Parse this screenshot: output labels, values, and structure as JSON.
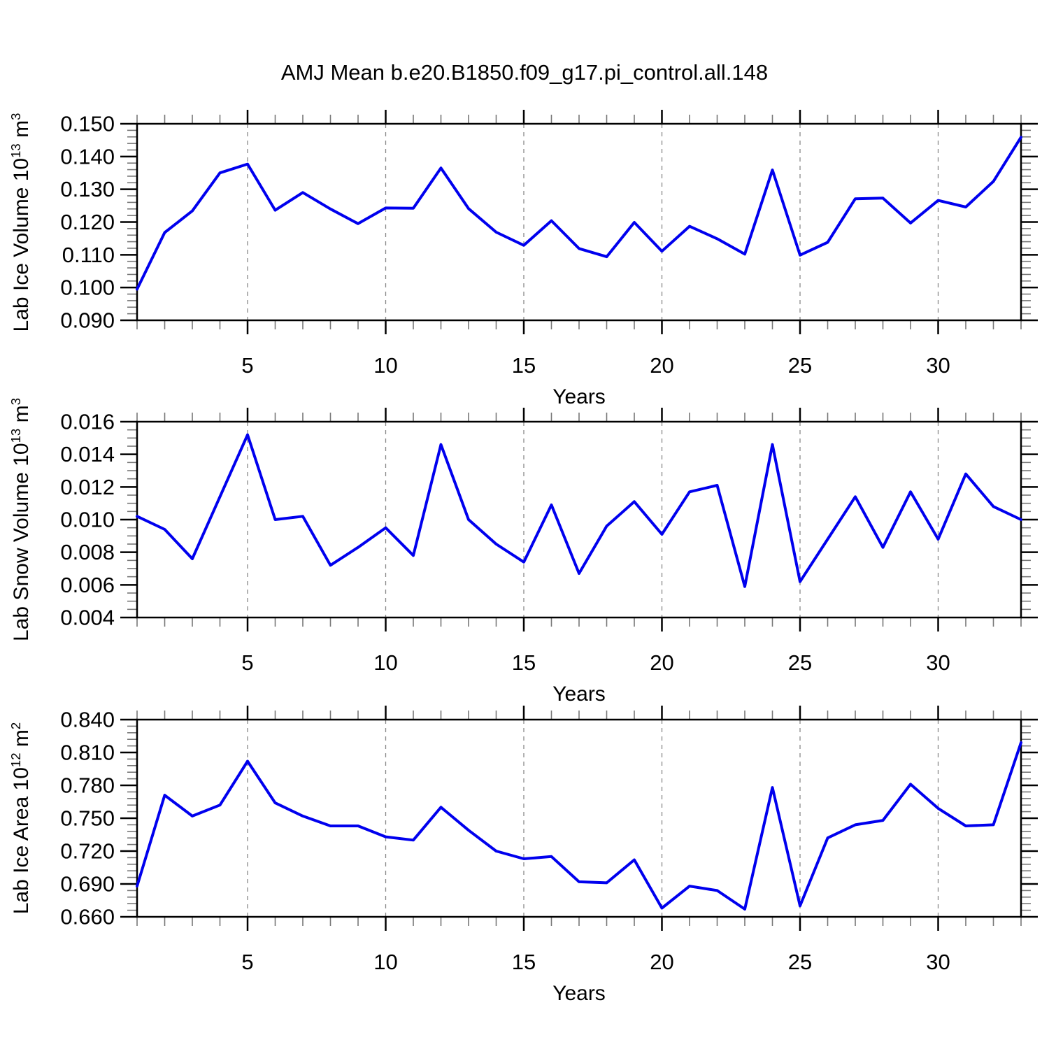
{
  "title": "AMJ Mean b.e20.B1850.f09_g17.pi_control.all.148",
  "colors": {
    "line": "#0000ee",
    "frame": "#000000",
    "grid": "#888888",
    "minor_tick": "#777777",
    "background": "#ffffff"
  },
  "x_axis": {
    "label": "Years",
    "min": 1,
    "max": 33,
    "minor_step": 1,
    "major_ticks": [
      5,
      10,
      15,
      20,
      25,
      30
    ],
    "tick_labels": [
      "5",
      "10",
      "15",
      "20",
      "25",
      "30"
    ]
  },
  "chart_data": [
    {
      "type": "line",
      "ylabel_text": "Lab Ice Volume 10^13 m^3",
      "ylabel_segments": [
        {
          "t": "Lab Ice Volume 10"
        },
        {
          "t": "13",
          "sup": true
        },
        {
          "t": " m"
        },
        {
          "t": "3",
          "sup": true
        }
      ],
      "ylim": [
        0.09,
        0.15
      ],
      "ytick_step": 0.01,
      "yminor_step": 0.002,
      "ytick_labels": [
        "0.090",
        "0.100",
        "0.110",
        "0.120",
        "0.130",
        "0.140",
        "0.150"
      ],
      "x": [
        1,
        2,
        3,
        4,
        5,
        6,
        7,
        8,
        9,
        10,
        11,
        12,
        13,
        14,
        15,
        16,
        17,
        18,
        19,
        20,
        21,
        22,
        23,
        24,
        25,
        26,
        27,
        28,
        29,
        30,
        31,
        32,
        33
      ],
      "values": [
        0.0995,
        0.1168,
        0.1234,
        0.135,
        0.1377,
        0.1236,
        0.129,
        0.124,
        0.1195,
        0.1243,
        0.1242,
        0.1365,
        0.1241,
        0.1169,
        0.1129,
        0.1204,
        0.1119,
        0.1094,
        0.1199,
        0.1111,
        0.1187,
        0.1149,
        0.1102,
        0.1359,
        0.1099,
        0.1138,
        0.1271,
        0.1273,
        0.1197,
        0.1266,
        0.1246,
        0.1324,
        0.1459
      ]
    },
    {
      "type": "line",
      "ylabel_text": "Lab Snow Volume 10^13 m^3",
      "ylabel_segments": [
        {
          "t": "Lab Snow Volume 10"
        },
        {
          "t": "13",
          "sup": true
        },
        {
          "t": " m"
        },
        {
          "t": "3",
          "sup": true
        }
      ],
      "ylim": [
        0.004,
        0.016
      ],
      "ytick_step": 0.002,
      "yminor_step": 0.0005,
      "ytick_labels": [
        "0.004",
        "0.006",
        "0.008",
        "0.010",
        "0.012",
        "0.014",
        "0.016"
      ],
      "x": [
        1,
        2,
        3,
        4,
        5,
        6,
        7,
        8,
        9,
        10,
        11,
        12,
        13,
        14,
        15,
        16,
        17,
        18,
        19,
        20,
        21,
        22,
        23,
        24,
        25,
        26,
        27,
        28,
        29,
        30,
        31,
        32,
        33
      ],
      "values": [
        0.0102,
        0.0094,
        0.0076,
        0.0114,
        0.0152,
        0.01,
        0.0102,
        0.0072,
        0.0083,
        0.0095,
        0.0078,
        0.0146,
        0.01,
        0.0085,
        0.0074,
        0.0109,
        0.0067,
        0.0096,
        0.0111,
        0.0091,
        0.0117,
        0.0121,
        0.0059,
        0.0146,
        0.0062,
        0.0088,
        0.0114,
        0.0083,
        0.0117,
        0.0088,
        0.0128,
        0.0108,
        0.01
      ]
    },
    {
      "type": "line",
      "ylabel_text": "Lab Ice Area 10^12 m^2",
      "ylabel_segments": [
        {
          "t": "Lab Ice Area 10"
        },
        {
          "t": "12",
          "sup": true
        },
        {
          "t": " m"
        },
        {
          "t": "2",
          "sup": true
        }
      ],
      "ylim": [
        0.66,
        0.84
      ],
      "ytick_step": 0.03,
      "yminor_step": 0.006,
      "ytick_labels": [
        "0.660",
        "0.690",
        "0.720",
        "0.750",
        "0.780",
        "0.810",
        "0.840"
      ],
      "x": [
        1,
        2,
        3,
        4,
        5,
        6,
        7,
        8,
        9,
        10,
        11,
        12,
        13,
        14,
        15,
        16,
        17,
        18,
        19,
        20,
        21,
        22,
        23,
        24,
        25,
        26,
        27,
        28,
        29,
        30,
        31,
        32,
        33
      ],
      "values": [
        0.688,
        0.771,
        0.752,
        0.762,
        0.802,
        0.764,
        0.752,
        0.743,
        0.743,
        0.733,
        0.73,
        0.76,
        0.739,
        0.72,
        0.713,
        0.715,
        0.692,
        0.691,
        0.712,
        0.668,
        0.688,
        0.684,
        0.667,
        0.778,
        0.67,
        0.732,
        0.744,
        0.748,
        0.781,
        0.759,
        0.743,
        0.744,
        0.819
      ]
    }
  ]
}
